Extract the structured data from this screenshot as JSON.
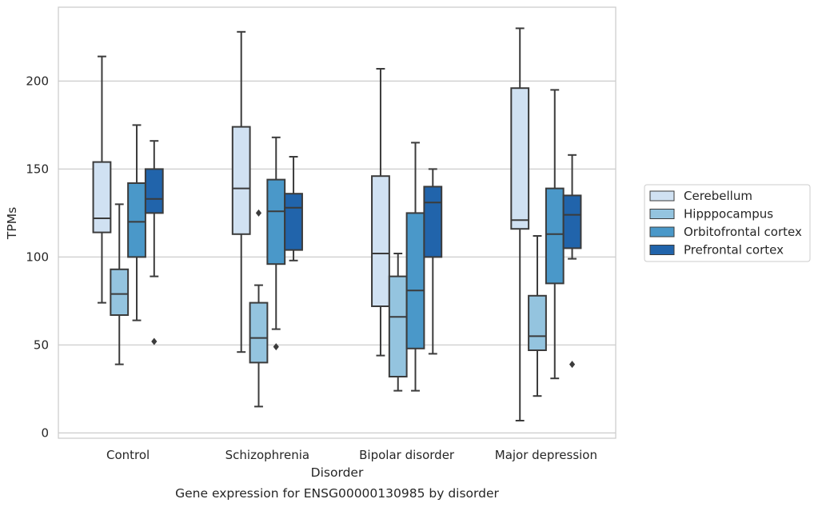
{
  "chart_data": {
    "type": "boxplot",
    "title": "Gene expression for ENSG00000130985 by disorder",
    "xlabel": "Disorder",
    "ylabel": "TPMs",
    "ylim": [
      -3,
      242
    ],
    "yticks": [
      0,
      50,
      100,
      150,
      200
    ],
    "grid": "horizontal",
    "legend_position": "right",
    "categories": [
      "Control",
      "Schizophrenia",
      "Bipolar disorder",
      "Major depression"
    ],
    "series": [
      {
        "name": "Cerebellum",
        "color": "#d0e1f2",
        "boxes": [
          {
            "whislo": 74,
            "q1": 114,
            "med": 122,
            "q3": 154,
            "whishi": 214,
            "fliers": []
          },
          {
            "whislo": 46,
            "q1": 113,
            "med": 139,
            "q3": 174,
            "whishi": 228,
            "fliers": []
          },
          {
            "whislo": 44,
            "q1": 72,
            "med": 102,
            "q3": 146,
            "whishi": 207,
            "fliers": []
          },
          {
            "whislo": 7,
            "q1": 116,
            "med": 121,
            "q3": 196,
            "whishi": 230,
            "fliers": []
          }
        ]
      },
      {
        "name": "Hipppocampus",
        "color": "#94c4df",
        "boxes": [
          {
            "whislo": 39,
            "q1": 67,
            "med": 79,
            "q3": 93,
            "whishi": 130,
            "fliers": []
          },
          {
            "whislo": 15,
            "q1": 40,
            "med": 54,
            "q3": 74,
            "whishi": 84,
            "fliers": [
              125
            ]
          },
          {
            "whislo": 24,
            "q1": 32,
            "med": 66,
            "q3": 89,
            "whishi": 102,
            "fliers": []
          },
          {
            "whislo": 21,
            "q1": 47,
            "med": 55,
            "q3": 78,
            "whishi": 112,
            "fliers": []
          }
        ]
      },
      {
        "name": "Orbitofrontal cortex",
        "color": "#4a98c9",
        "boxes": [
          {
            "whislo": 64,
            "q1": 100,
            "med": 120,
            "q3": 142,
            "whishi": 175,
            "fliers": []
          },
          {
            "whislo": 59,
            "q1": 96,
            "med": 126,
            "q3": 144,
            "whishi": 168,
            "fliers": [
              49
            ]
          },
          {
            "whislo": 24,
            "q1": 48,
            "med": 81,
            "q3": 125,
            "whishi": 165,
            "fliers": []
          },
          {
            "whislo": 31,
            "q1": 85,
            "med": 113,
            "q3": 139,
            "whishi": 195,
            "fliers": []
          }
        ]
      },
      {
        "name": "Prefrontal cortex",
        "color": "#2164ab",
        "boxes": [
          {
            "whislo": 89,
            "q1": 125,
            "med": 133,
            "q3": 150,
            "whishi": 166,
            "fliers": [
              52
            ]
          },
          {
            "whislo": 98,
            "q1": 104,
            "med": 128,
            "q3": 136,
            "whishi": 157,
            "fliers": []
          },
          {
            "whislo": 45,
            "q1": 100,
            "med": 131,
            "q3": 140,
            "whishi": 150,
            "fliers": []
          },
          {
            "whislo": 99,
            "q1": 105,
            "med": 124,
            "q3": 135,
            "whishi": 158,
            "fliers": [
              39
            ]
          }
        ]
      }
    ]
  }
}
